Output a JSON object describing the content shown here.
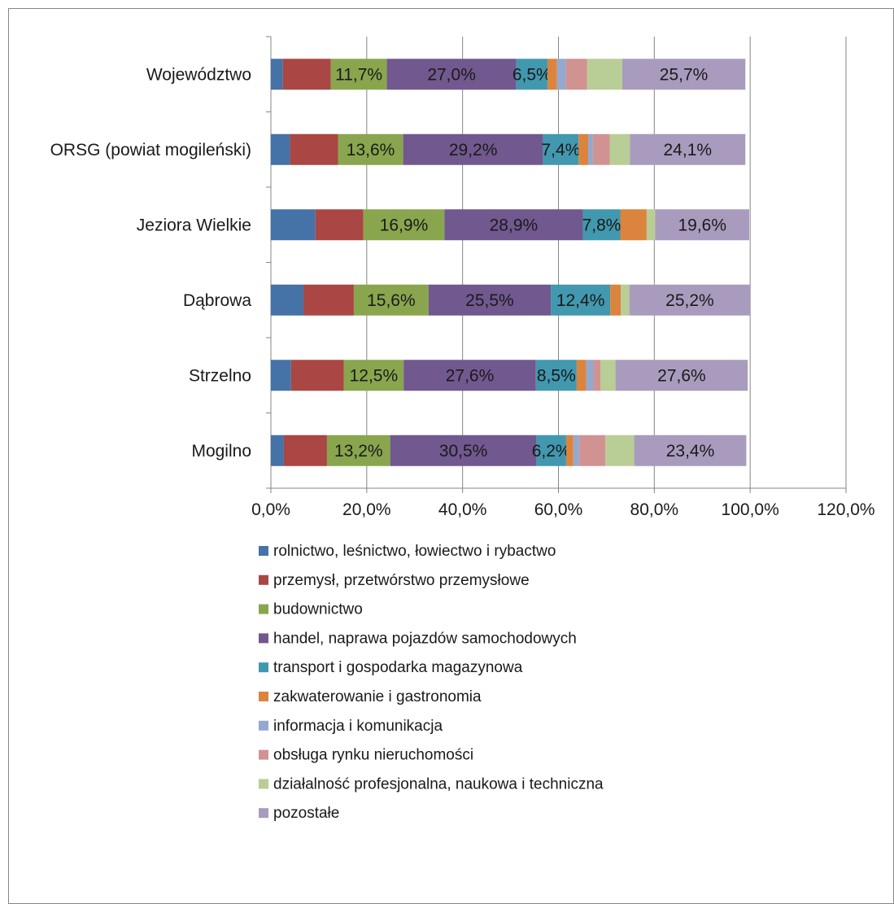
{
  "chart_data": {
    "type": "bar",
    "orientation": "horizontal",
    "stacked": true,
    "title": "",
    "xlabel": "",
    "ylabel": "",
    "xlim": [
      0,
      120
    ],
    "x_ticks": [
      "0,0%",
      "20,0%",
      "40,0%",
      "60,0%",
      "80,0%",
      "100,0%",
      "120,0%"
    ],
    "grid": "vertical major gridlines",
    "legend_position": "bottom",
    "categories": [
      "Województwo",
      "ORSG (powiat mogileński)",
      "Jeziora Wielkie",
      "Dąbrowa",
      "Strzelno",
      "Mogilno"
    ],
    "series": [
      {
        "name": "rolnictwo, leśnictwo, łowiectwo i rybactwo",
        "color": "#4572A7",
        "values": [
          2.5,
          4.0,
          9.3,
          6.8,
          4.2,
          2.7
        ],
        "labels": [
          "",
          "",
          "",
          "",
          "",
          ""
        ]
      },
      {
        "name": "przemysł, przetwórstwo przemysłowe",
        "color": "#AA4643",
        "values": [
          10.0,
          10.0,
          10.0,
          10.5,
          11.0,
          9.0
        ],
        "labels": [
          "",
          "",
          "",
          "",
          "",
          ""
        ]
      },
      {
        "name": "budownictwo",
        "color": "#89A54E",
        "values": [
          11.7,
          13.6,
          16.9,
          15.6,
          12.5,
          13.2
        ],
        "labels": [
          "11,7%",
          "13,6%",
          "16,9%",
          "15,6%",
          "12,5%",
          "13,2%"
        ]
      },
      {
        "name": "handel, naprawa pojazdów samochodowych",
        "color": "#71588F",
        "values": [
          27.0,
          29.2,
          28.9,
          25.5,
          27.6,
          30.5
        ],
        "labels": [
          "27,0%",
          "29,2%",
          "28,9%",
          "25,5%",
          "27,6%",
          "30,5%"
        ]
      },
      {
        "name": "transport i gospodarka magazynowa",
        "color": "#4198AF",
        "values": [
          6.5,
          7.4,
          7.8,
          12.4,
          8.5,
          6.2
        ],
        "labels": [
          "6,5%",
          "7,4%",
          "7,8%",
          "12,4%",
          "8,5%",
          "6,2%"
        ]
      },
      {
        "name": "zakwaterowanie i gastronomia",
        "color": "#DB843D",
        "values": [
          2.0,
          2.0,
          5.5,
          2.2,
          2.0,
          1.5
        ],
        "labels": [
          "",
          "",
          "",
          "",
          "",
          ""
        ]
      },
      {
        "name": "informacja i komunikacja",
        "color": "#93A9CF",
        "values": [
          1.8,
          1.0,
          0.0,
          0.0,
          1.5,
          1.2
        ],
        "labels": [
          "",
          "",
          "",
          "",
          "",
          ""
        ]
      },
      {
        "name": "obsługa rynku nieruchomości",
        "color": "#D19392",
        "values": [
          4.5,
          3.5,
          0.0,
          0.0,
          1.5,
          5.5
        ],
        "labels": [
          "",
          "",
          "",
          "",
          "",
          ""
        ]
      },
      {
        "name": "działalność profesjonalna, naukowa i techniczna",
        "color": "#B9CD96",
        "values": [
          7.3,
          4.2,
          1.8,
          1.8,
          3.1,
          6.0
        ],
        "labels": [
          "",
          "",
          "",
          "",
          "",
          ""
        ]
      },
      {
        "name": "pozostałe",
        "color": "#A99BBD",
        "values": [
          25.7,
          24.1,
          19.6,
          25.2,
          27.6,
          23.4
        ],
        "labels": [
          "25,7%",
          "24,1%",
          "19,6%",
          "25,2%",
          "27,6%",
          "23,4%"
        ]
      }
    ]
  }
}
